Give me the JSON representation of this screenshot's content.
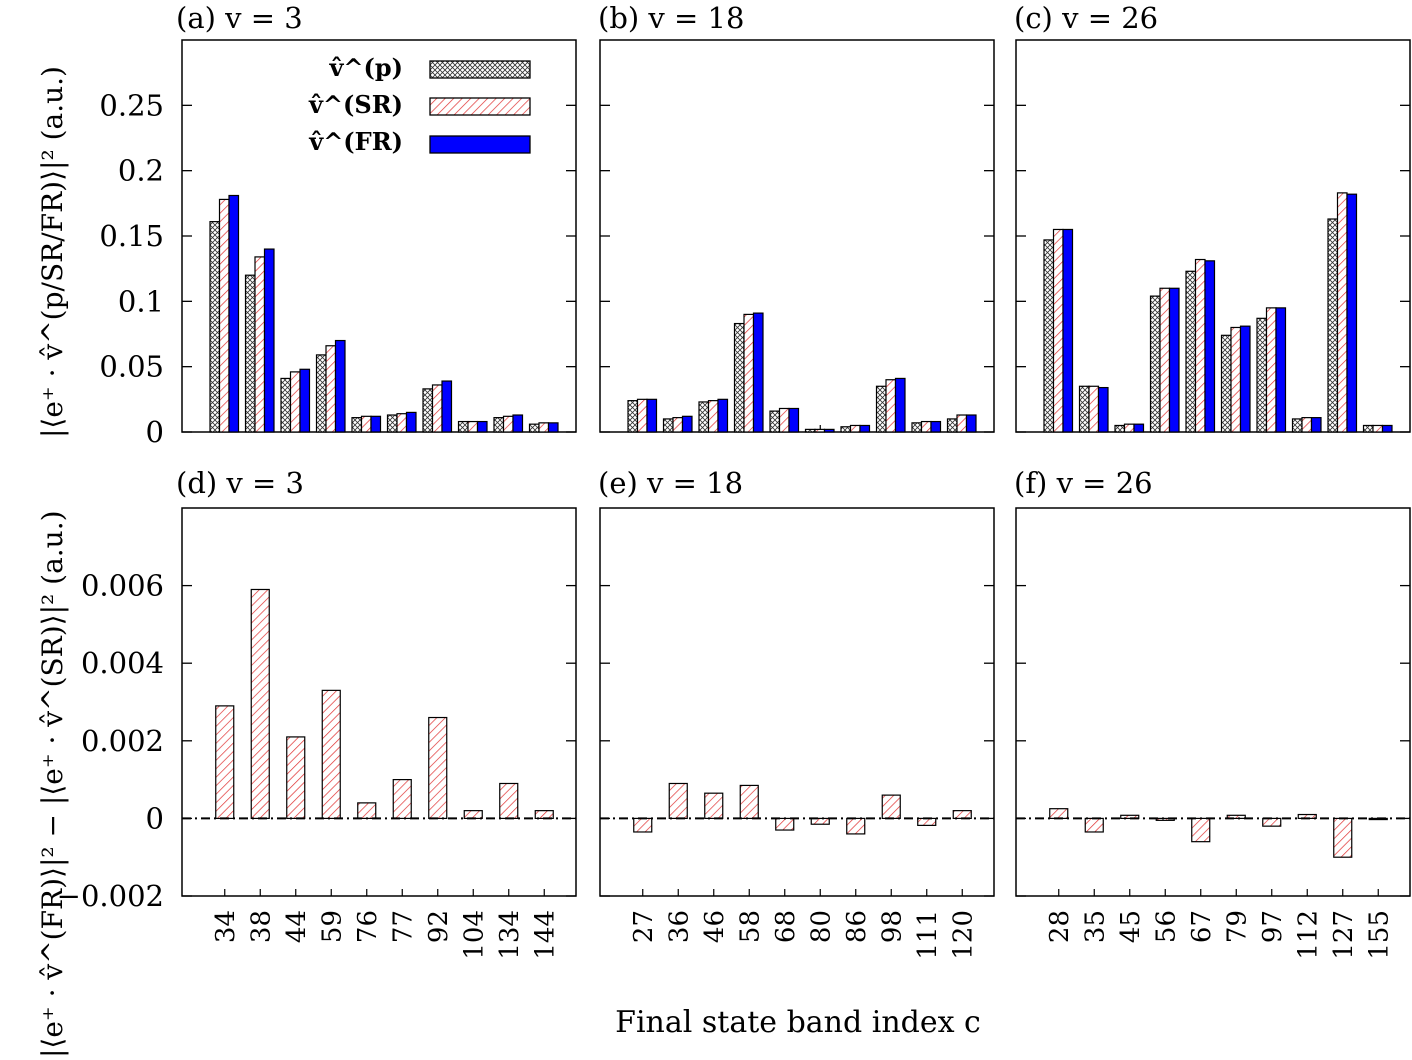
{
  "figure": {
    "xlabel": "Final state band index c",
    "ylabel_top": "|⟨e⁺ · v̂^(p/SR/FR)⟩|² (a.u.)",
    "ylabel_bottom": "|⟨e⁺ · v̂^(FR)⟩|² − |⟨e⁺ · v̂^(SR)⟩|² (a.u.)"
  },
  "legend": {
    "entries": [
      {
        "label": "v̂^(p)",
        "pattern": "crosshatch"
      },
      {
        "label": "v̂^(SR)",
        "pattern": "red-diagonal"
      },
      {
        "label": "v̂^(FR)",
        "pattern": "solid-blue"
      }
    ]
  },
  "colors": {
    "fr_fill": "#0000ff",
    "sr_hatch": "#e03030",
    "p_hatch": "#333333",
    "axis": "#000000"
  },
  "chart_data": [
    {
      "type": "bar",
      "panel": "(a)",
      "title": "(a) v = 3",
      "categories": [
        "34",
        "38",
        "44",
        "59",
        "76",
        "77",
        "92",
        "104",
        "134",
        "144"
      ],
      "ylim": [
        0,
        0.3
      ],
      "yticks": [
        0,
        0.05,
        0.1,
        0.15,
        0.2,
        0.25
      ],
      "ytick_labels": [
        "0",
        "0.05",
        "0.1",
        "0.15",
        "0.2",
        "0.25"
      ],
      "series": [
        {
          "name": "v̂^(p)",
          "values": [
            0.161,
            0.12,
            0.041,
            0.059,
            0.011,
            0.013,
            0.033,
            0.008,
            0.011,
            0.006
          ]
        },
        {
          "name": "v̂^(SR)",
          "values": [
            0.178,
            0.134,
            0.046,
            0.066,
            0.012,
            0.014,
            0.036,
            0.008,
            0.012,
            0.007
          ]
        },
        {
          "name": "v̂^(FR)",
          "values": [
            0.181,
            0.14,
            0.048,
            0.07,
            0.012,
            0.015,
            0.039,
            0.008,
            0.013,
            0.007
          ]
        }
      ]
    },
    {
      "type": "bar",
      "panel": "(b)",
      "title": "(b) v = 18",
      "categories": [
        "27",
        "36",
        "46",
        "58",
        "68",
        "80",
        "86",
        "98",
        "111",
        "120"
      ],
      "ylim": [
        0,
        0.3
      ],
      "yticks": [
        0,
        0.05,
        0.1,
        0.15,
        0.2,
        0.25
      ],
      "series": [
        {
          "name": "v̂^(p)",
          "values": [
            0.024,
            0.01,
            0.023,
            0.083,
            0.016,
            0.002,
            0.004,
            0.035,
            0.007,
            0.01
          ]
        },
        {
          "name": "v̂^(SR)",
          "values": [
            0.025,
            0.011,
            0.024,
            0.09,
            0.018,
            0.002,
            0.005,
            0.04,
            0.008,
            0.013
          ]
        },
        {
          "name": "v̂^(FR)",
          "values": [
            0.025,
            0.012,
            0.025,
            0.091,
            0.018,
            0.002,
            0.005,
            0.041,
            0.008,
            0.013
          ]
        }
      ]
    },
    {
      "type": "bar",
      "panel": "(c)",
      "title": "(c) v = 26",
      "categories": [
        "28",
        "35",
        "45",
        "56",
        "67",
        "79",
        "97",
        "112",
        "127",
        "155"
      ],
      "ylim": [
        0,
        0.3
      ],
      "yticks": [
        0,
        0.05,
        0.1,
        0.15,
        0.2,
        0.25
      ],
      "series": [
        {
          "name": "v̂^(p)",
          "values": [
            0.147,
            0.035,
            0.005,
            0.104,
            0.123,
            0.074,
            0.087,
            0.01,
            0.163,
            0.005
          ]
        },
        {
          "name": "v̂^(SR)",
          "values": [
            0.155,
            0.035,
            0.006,
            0.11,
            0.132,
            0.08,
            0.095,
            0.011,
            0.183,
            0.005
          ]
        },
        {
          "name": "v̂^(FR)",
          "values": [
            0.155,
            0.034,
            0.006,
            0.11,
            0.131,
            0.081,
            0.095,
            0.011,
            0.182,
            0.005
          ]
        }
      ]
    },
    {
      "type": "bar",
      "panel": "(d)",
      "title": "(d) v = 3",
      "categories": [
        "34",
        "38",
        "44",
        "59",
        "76",
        "77",
        "92",
        "104",
        "134",
        "144"
      ],
      "ylim": [
        -0.002,
        0.008
      ],
      "yticks": [
        -0.002,
        0,
        0.002,
        0.004,
        0.006
      ],
      "ytick_labels": [
        "−0.002",
        "0",
        "0.002",
        "0.004",
        "0.006"
      ],
      "zero_line": "dash-dot",
      "series": [
        {
          "name": "difference",
          "values": [
            0.0029,
            0.0059,
            0.0021,
            0.0033,
            0.0004,
            0.001,
            0.0026,
            0.0002,
            0.0009,
            0.0002
          ]
        }
      ]
    },
    {
      "type": "bar",
      "panel": "(e)",
      "title": "(e) v = 18",
      "categories": [
        "27",
        "36",
        "46",
        "58",
        "68",
        "80",
        "86",
        "98",
        "111",
        "120"
      ],
      "ylim": [
        -0.002,
        0.008
      ],
      "yticks": [
        -0.002,
        0,
        0.002,
        0.004,
        0.006
      ],
      "zero_line": "dash-dot",
      "series": [
        {
          "name": "difference",
          "values": [
            -0.00035,
            0.0009,
            0.00065,
            0.00085,
            -0.0003,
            -0.00015,
            -0.0004,
            0.0006,
            -0.00018,
            0.0002
          ]
        }
      ]
    },
    {
      "type": "bar",
      "panel": "(f)",
      "title": "(f) v = 26",
      "categories": [
        "28",
        "35",
        "45",
        "56",
        "67",
        "79",
        "97",
        "112",
        "127",
        "155"
      ],
      "ylim": [
        -0.002,
        0.008
      ],
      "yticks": [
        -0.002,
        0,
        0.002,
        0.004,
        0.006
      ],
      "zero_line": "dash-dot",
      "series": [
        {
          "name": "difference",
          "values": [
            0.00025,
            -0.00035,
            8e-05,
            -5e-05,
            -0.0006,
            8e-05,
            -0.0002,
            0.0001,
            -0.001,
            -3e-05
          ]
        }
      ]
    }
  ]
}
